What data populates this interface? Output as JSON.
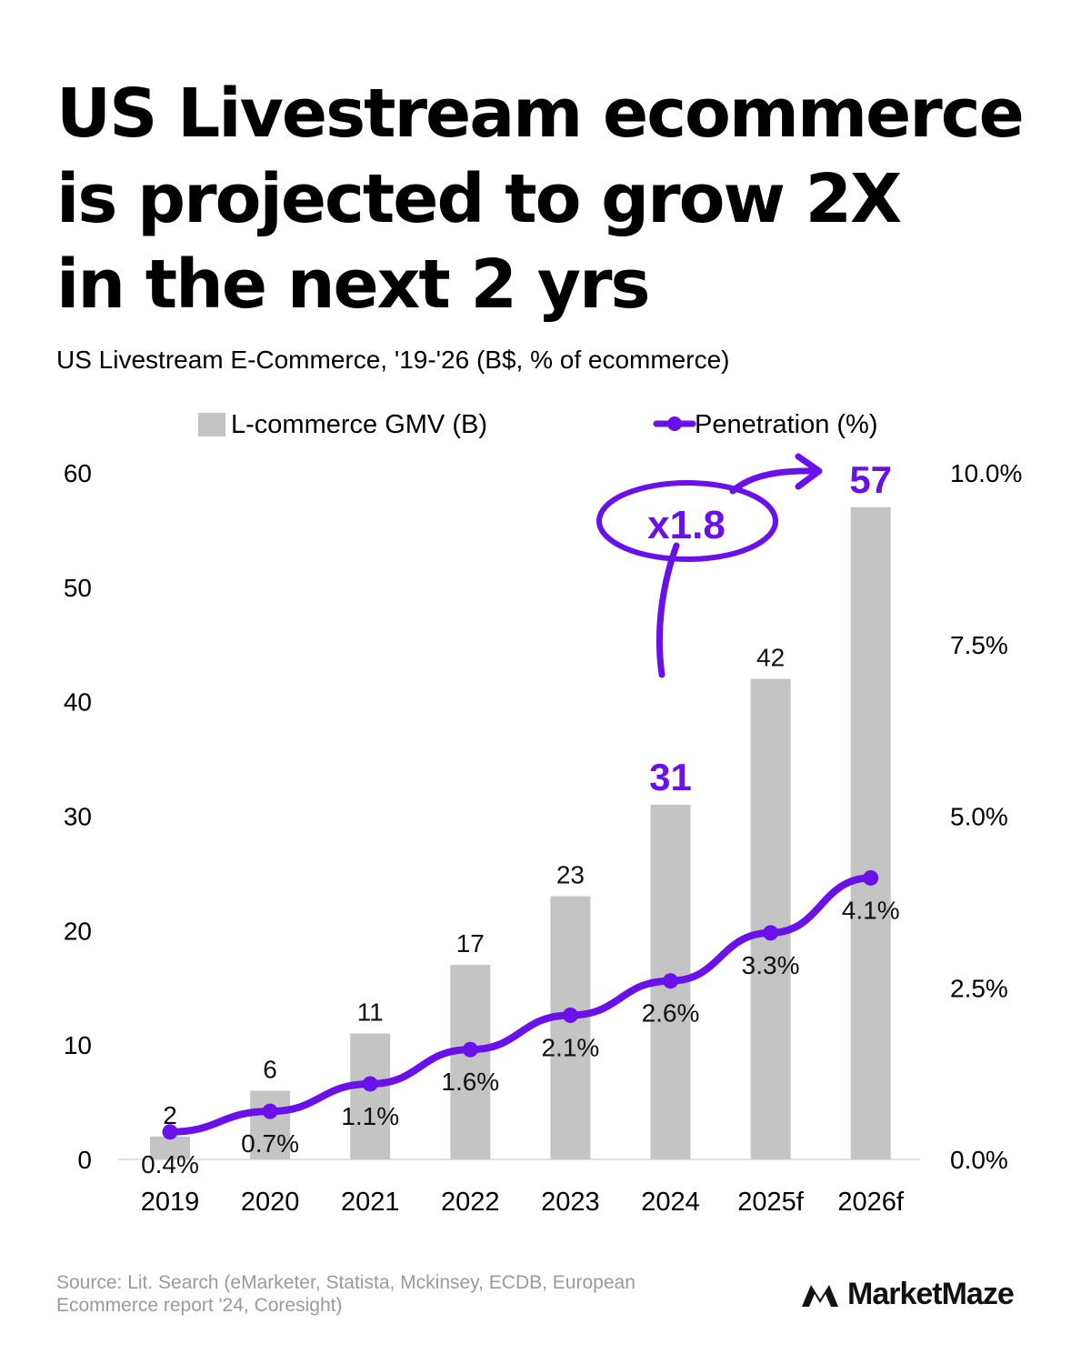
{
  "title_lines": [
    "US Livestream ecommerce",
    "is projected to grow 2X",
    "in the next 2 yrs"
  ],
  "subtitle": "US Livestream E-Commerce, '19-'26 (B$, % of ecommerce)",
  "colors": {
    "bar": "#c4c4c4",
    "line": "#6a10e8",
    "highlight": "#6a10e8",
    "axis_line": "#d9d9d9"
  },
  "chart_data": {
    "type": "bar",
    "title": "US Livestream E-Commerce, '19-'26 (B$, % of ecommerce)",
    "categories": [
      "2019",
      "2020",
      "2021",
      "2022",
      "2023",
      "2024",
      "2025f",
      "2026f"
    ],
    "series": [
      {
        "name": "L-commerce GMV (B)",
        "type": "bar",
        "axis": "left",
        "values": [
          2,
          6,
          11,
          17,
          23,
          31,
          42,
          57
        ],
        "labels": [
          "2",
          "6",
          "11",
          "17",
          "23",
          "31",
          "42",
          "57"
        ],
        "highlight_labels": [
          "31",
          "57"
        ]
      },
      {
        "name": "Penetration (%)",
        "type": "line",
        "axis": "right",
        "values": [
          0.4,
          0.7,
          1.1,
          1.6,
          2.1,
          2.6,
          3.3,
          4.1
        ],
        "labels": [
          "0.4%",
          "0.7%",
          "1.1%",
          "1.6%",
          "2.1%",
          "2.6%",
          "3.3%",
          "4.1%"
        ]
      }
    ],
    "left_axis": {
      "ylim": [
        0,
        60
      ],
      "ticks": [
        "0",
        "10",
        "20",
        "30",
        "40",
        "50",
        "60"
      ]
    },
    "right_axis": {
      "ylim": [
        0,
        10
      ],
      "ticks": [
        "0.0%",
        "2.5%",
        "5.0%",
        "7.5%",
        "10.0%"
      ]
    },
    "legend": {
      "position": "top"
    },
    "annotation": {
      "text": "x1.8",
      "from": "2024",
      "to": "2026f"
    }
  },
  "footer": {
    "source_lines": [
      "Source: Lit. Search (eMarketer, Statista, Mckinsey, ECDB, European",
      "Ecommerce report '24, Coresight)"
    ],
    "logo_text": "MarketMaze"
  }
}
